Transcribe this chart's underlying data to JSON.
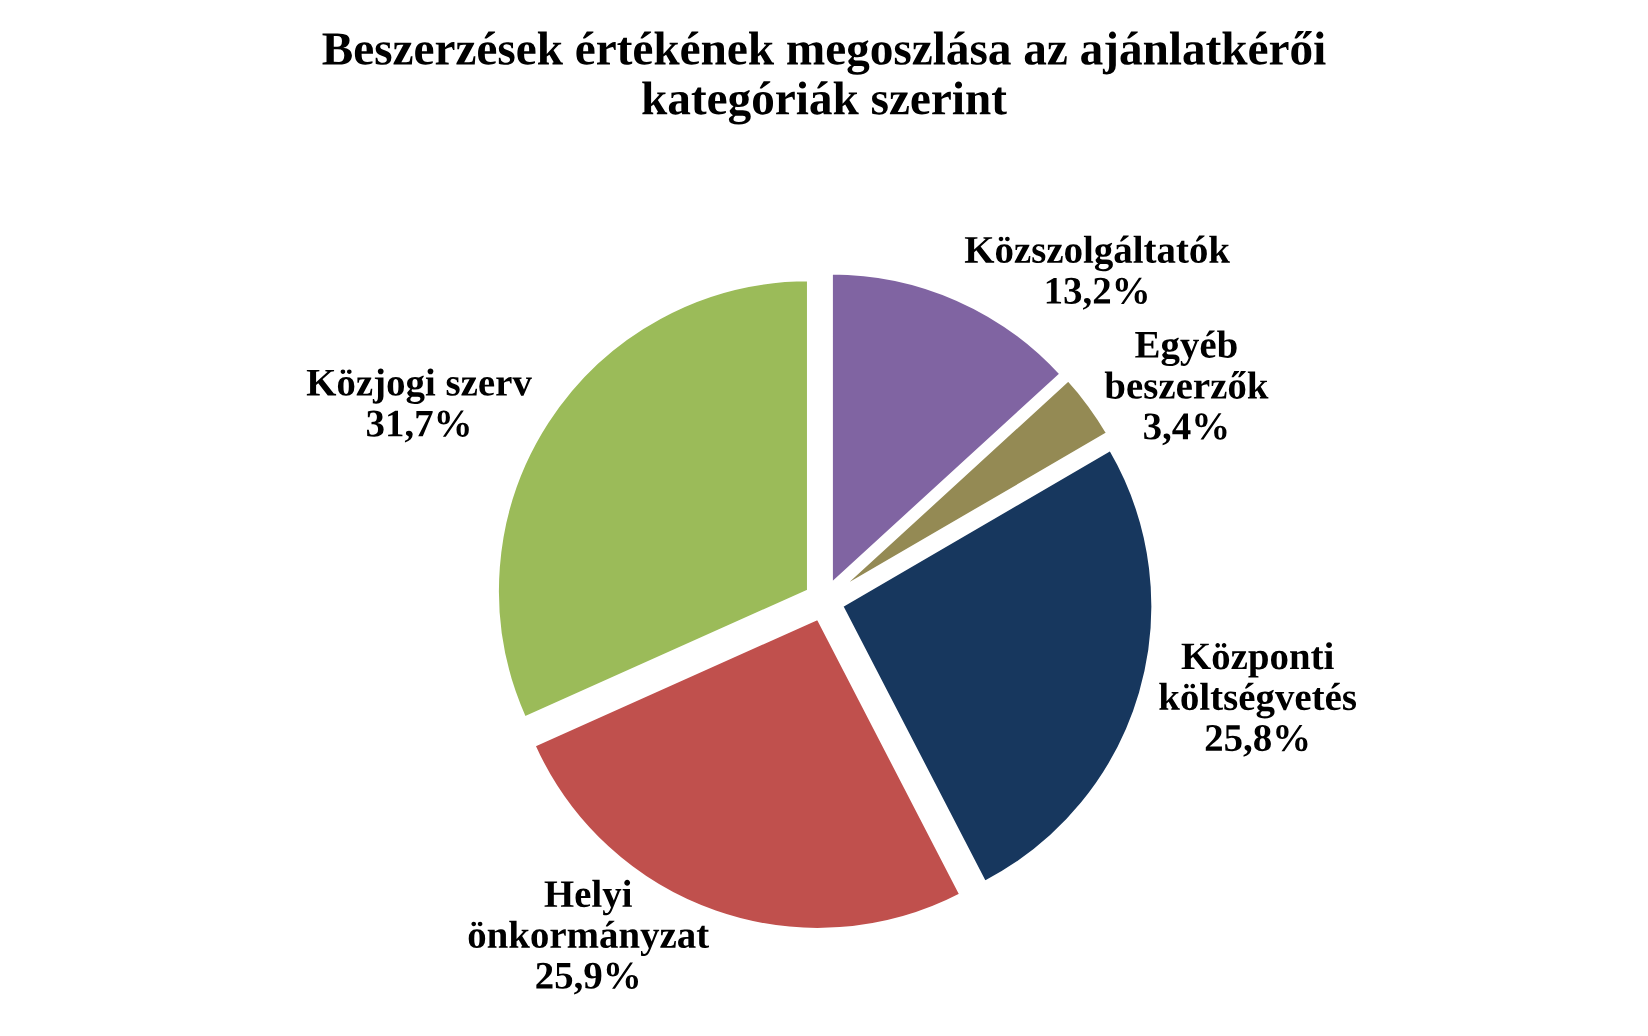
{
  "chart_data": {
    "type": "pie",
    "title": "Beszerzések értékének megoszlása az ajánlatkérői\nkategóriák szerint",
    "categories": [
      "Közszolgáltatók",
      "Egyéb\nbeszerzők",
      "Központi\nköltségvetés",
      "Helyi\nönkormányzat",
      "Közjogi szerv"
    ],
    "values": [
      13.2,
      3.4,
      25.8,
      25.9,
      31.7
    ],
    "value_labels": [
      "13,2%",
      "3,4%",
      "25,8%",
      "25,9%",
      "31,7%"
    ],
    "colors": [
      "#8064a2",
      "#948a54",
      "#17375e",
      "#c0504d",
      "#9bbb59"
    ],
    "legend": false
  }
}
